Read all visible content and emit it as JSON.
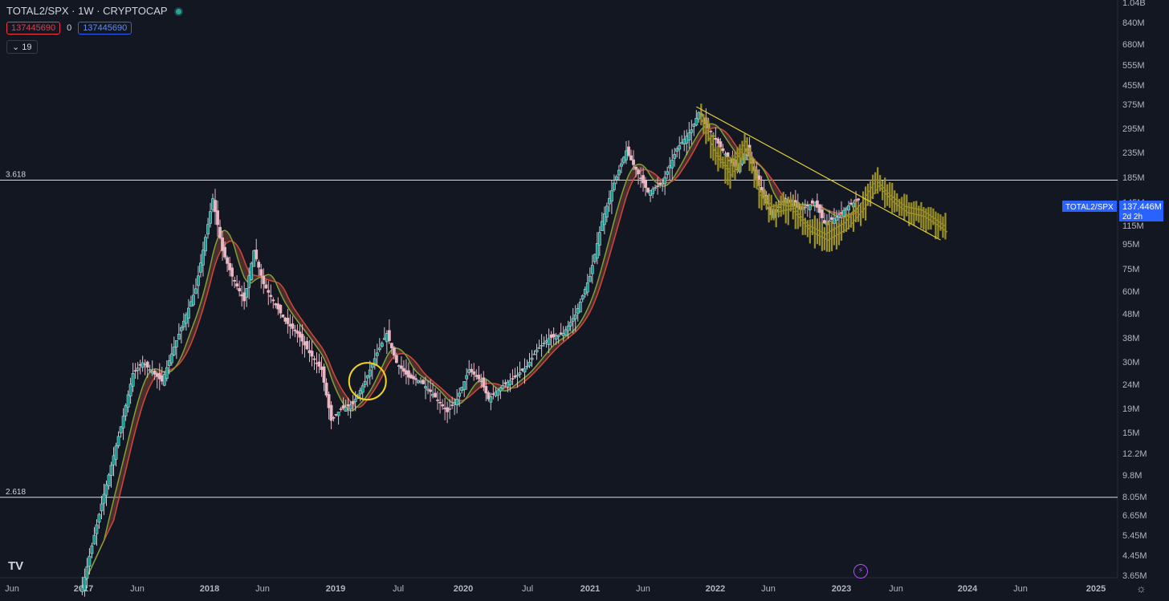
{
  "header": {
    "title": "TOTAL2/SPX · 1W · CRYPTOCAP",
    "value_red": "137445690",
    "value_mid": "0",
    "value_blue": "137445690",
    "collapse_count": "19"
  },
  "colors": {
    "background": "#131722",
    "candle_up": "#c8cdd6",
    "candle_down": "#e8b7c3",
    "candle_up_fill": "#0e9a8f",
    "ma_fast": "#7fa03a",
    "ma_slow": "#d2473c",
    "projection": "#9c9127",
    "trendline": "#e0cc3a",
    "highlight_circle": "#f0d21e",
    "price_tag": "#2962ff"
  },
  "chart_data": {
    "type": "candlestick",
    "title": "TOTAL2/SPX · 1W · CRYPTOCAP",
    "x_axis": {
      "tick_labels": [
        "Jun",
        "2017",
        "Jun",
        "2018",
        "Jun",
        "2019",
        "Jul",
        "2020",
        "Jul",
        "2021",
        "Jun",
        "2022",
        "Jun",
        "2023",
        "Jun",
        "2024",
        "Jun",
        "2025"
      ]
    },
    "y_axis": {
      "scale": "log",
      "tick_labels": [
        "1.04B",
        "840M",
        "680M",
        "555M",
        "455M",
        "375M",
        "295M",
        "235M",
        "185M",
        "145M",
        "115M",
        "95M",
        "75M",
        "60M",
        "48M",
        "38M",
        "30M",
        "24M",
        "19M",
        "15M",
        "12.2M",
        "9.8M",
        "8.05M",
        "6.65M",
        "5.45M",
        "4.45M",
        "3.65M"
      ]
    },
    "horizontal_levels": [
      {
        "label": "3.618",
        "value": 180000000
      },
      {
        "label": "2.618",
        "value": 8000000
      }
    ],
    "current_price": {
      "symbol": "TOTAL2/SPX",
      "value": "137.446M",
      "countdown": "2d 2h"
    },
    "series_path": [
      [
        "2016-12-26",
        3.3
      ],
      [
        "2017-02-20",
        7.5
      ],
      [
        "2017-04-17",
        16
      ],
      [
        "2017-05-22",
        27
      ],
      [
        "2017-06-19",
        30
      ],
      [
        "2017-08-14",
        25
      ],
      [
        "2017-09-18",
        35
      ],
      [
        "2017-11-20",
        62
      ],
      [
        "2018-01-08",
        150
      ],
      [
        "2018-02-05",
        90
      ],
      [
        "2018-03-05",
        70
      ],
      [
        "2018-04-09",
        55
      ],
      [
        "2018-05-07",
        90
      ],
      [
        "2018-06-04",
        65
      ],
      [
        "2018-07-02",
        55
      ],
      [
        "2018-08-06",
        45
      ],
      [
        "2018-09-10",
        40
      ],
      [
        "2018-10-15",
        33
      ],
      [
        "2018-11-19",
        28
      ],
      [
        "2018-12-17",
        17
      ],
      [
        "2019-01-14",
        19
      ],
      [
        "2019-02-18",
        20
      ],
      [
        "2019-03-25",
        25
      ],
      [
        "2019-04-29",
        33
      ],
      [
        "2019-05-27",
        40
      ],
      [
        "2019-06-24",
        30
      ],
      [
        "2019-07-29",
        26
      ],
      [
        "2019-09-02",
        25
      ],
      [
        "2019-10-07",
        22
      ],
      [
        "2019-11-18",
        18.5
      ],
      [
        "2019-12-16",
        21
      ],
      [
        "2020-01-20",
        28
      ],
      [
        "2020-02-24",
        25
      ],
      [
        "2020-03-16",
        21
      ],
      [
        "2020-04-27",
        24
      ],
      [
        "2020-06-01",
        26
      ],
      [
        "2020-07-06",
        29
      ],
      [
        "2020-08-03",
        34
      ],
      [
        "2020-09-07",
        38
      ],
      [
        "2020-10-19",
        40
      ],
      [
        "2020-11-23",
        48
      ],
      [
        "2021-01-04",
        70
      ],
      [
        "2021-02-08",
        120
      ],
      [
        "2021-03-15",
        175
      ],
      [
        "2021-04-19",
        240
      ],
      [
        "2021-05-17",
        200
      ],
      [
        "2021-06-21",
        160
      ],
      [
        "2021-08-02",
        175
      ],
      [
        "2021-09-13",
        245
      ],
      [
        "2021-10-25",
        295
      ],
      [
        "2021-11-15",
        350
      ],
      [
        "2021-12-13",
        300
      ],
      [
        "2022-01-24",
        240
      ],
      [
        "2022-03-07",
        200
      ],
      [
        "2022-04-04",
        245
      ],
      [
        "2022-05-09",
        170
      ],
      [
        "2022-06-13",
        128
      ],
      [
        "2022-07-25",
        150
      ],
      [
        "2022-09-05",
        135
      ],
      [
        "2022-10-17",
        145
      ],
      [
        "2022-11-14",
        118
      ],
      [
        "2022-12-19",
        125
      ],
      [
        "2023-01-23",
        140
      ],
      [
        "2023-02-20",
        148
      ]
    ],
    "projection_path": [
      [
        "2021-11-22",
        330
      ],
      [
        "2022-01-03",
        235
      ],
      [
        "2022-02-14",
        195
      ],
      [
        "2022-04-04",
        255
      ],
      [
        "2022-05-09",
        160
      ],
      [
        "2022-06-20",
        135
      ],
      [
        "2022-08-08",
        140
      ],
      [
        "2022-10-03",
        112
      ],
      [
        "2022-11-21",
        103
      ],
      [
        "2023-01-16",
        115
      ],
      [
        "2023-03-06",
        140
      ],
      [
        "2023-04-17",
        175
      ],
      [
        "2023-05-29",
        150
      ],
      [
        "2023-07-10",
        135
      ],
      [
        "2023-08-28",
        130
      ],
      [
        "2023-10-02",
        120
      ],
      [
        "2023-10-30",
        112
      ]
    ],
    "trendline": {
      "start": [
        "2021-11-08",
        370
      ],
      "end": [
        "2023-10-16",
        100
      ]
    },
    "highlight": {
      "date": "2019-04-01",
      "value": 25
    }
  }
}
